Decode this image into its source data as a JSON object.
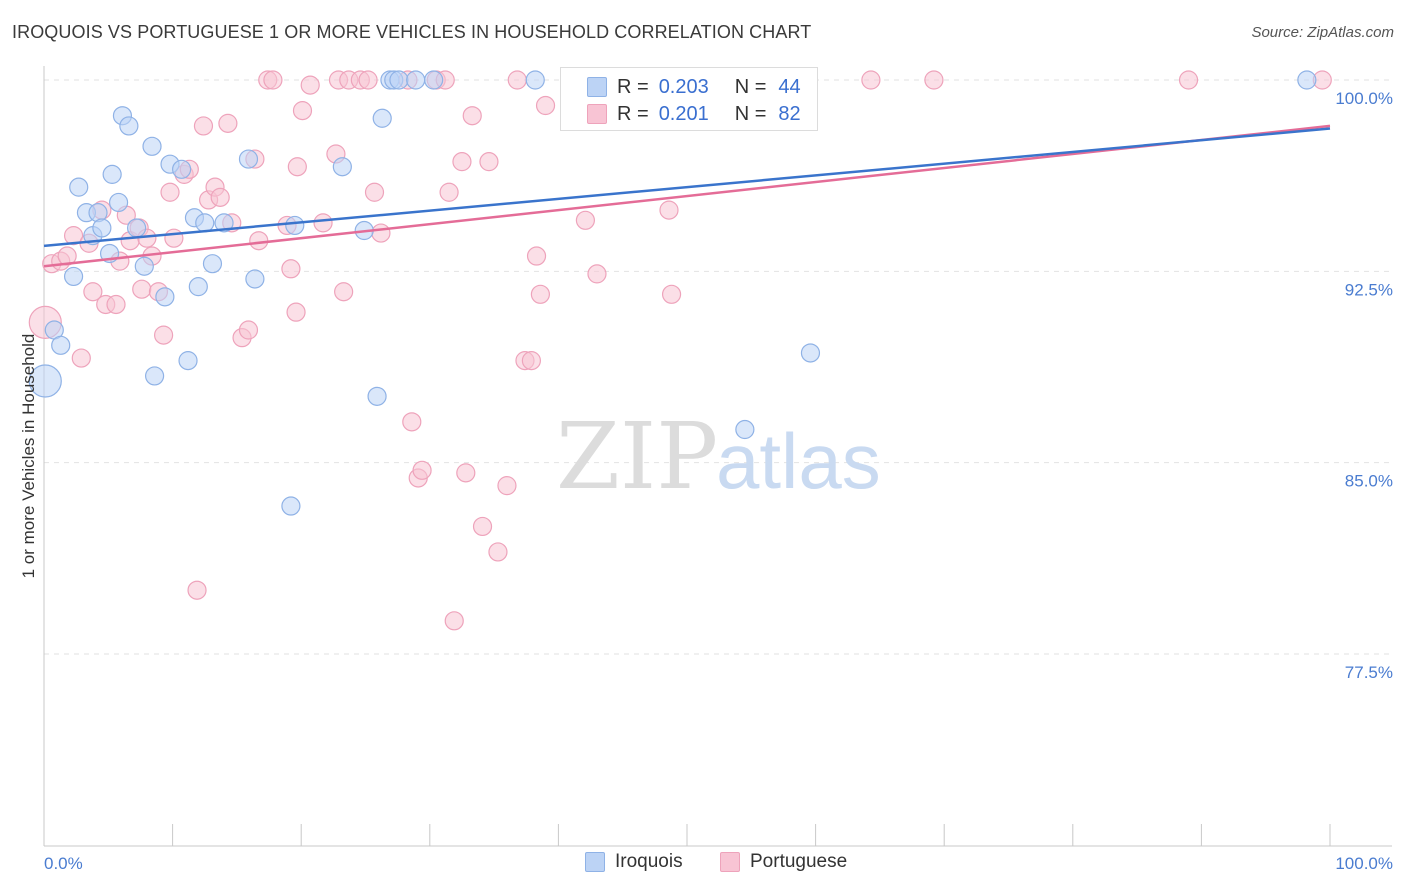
{
  "title": "IROQUOIS VS PORTUGUESE 1 OR MORE VEHICLES IN HOUSEHOLD CORRELATION CHART",
  "source": "Source: ZipAtlas.com",
  "watermark": {
    "zip": "ZIP",
    "atlas": "atlas"
  },
  "legend": {
    "r_label": "R =",
    "n_label": "N =",
    "iroquois": {
      "r": "0.203",
      "n": "44"
    },
    "portuguese": {
      "r": "0.201",
      "n": "82"
    }
  },
  "colors": {
    "iroquois_fill": "#bcd3f5",
    "iroquois_stroke": "#8fb2e6",
    "iroquois_line": "#3a74cc",
    "portuguese_fill": "#f8c4d4",
    "portuguese_stroke": "#eea3bb",
    "portuguese_line": "#e46c97",
    "tick_text": "#4a7cd0"
  },
  "chart_data": {
    "type": "scatter",
    "title": "IROQUOIS VS PORTUGUESE 1 OR MORE VEHICLES IN HOUSEHOLD CORRELATION CHART",
    "xlabel": "",
    "ylabel": "1 or more Vehicles in Household",
    "xlim": [
      0,
      100
    ],
    "ylim": [
      70.3,
      101.2
    ],
    "x_tick_labels": [
      "0.0%",
      "100.0%"
    ],
    "y_ticks": [
      77.5,
      85.0,
      92.5,
      100.0
    ],
    "y_tick_labels": [
      "77.5%",
      "85.0%",
      "92.5%",
      "100.0%"
    ],
    "grid": true,
    "legend_position": "top-center",
    "series": [
      {
        "name": "Iroquois",
        "trend": {
          "x": [
            0,
            100
          ],
          "y": [
            93.5,
            98.1
          ]
        },
        "points": [
          [
            0.1,
            88.2
          ],
          [
            0.8,
            90.2
          ],
          [
            1.3,
            89.6
          ],
          [
            2.3,
            92.3
          ],
          [
            2.7,
            95.8
          ],
          [
            3.3,
            94.8
          ],
          [
            3.8,
            93.9
          ],
          [
            4.2,
            94.8
          ],
          [
            4.5,
            94.2
          ],
          [
            5.1,
            93.2
          ],
          [
            5.3,
            96.3
          ],
          [
            5.8,
            95.2
          ],
          [
            6.1,
            98.6
          ],
          [
            6.6,
            98.2
          ],
          [
            7.2,
            94.2
          ],
          [
            7.8,
            92.7
          ],
          [
            8.4,
            97.4
          ],
          [
            8.6,
            88.4
          ],
          [
            9.4,
            91.5
          ],
          [
            9.8,
            96.7
          ],
          [
            10.7,
            96.5
          ],
          [
            11.2,
            89.0
          ],
          [
            11.7,
            94.6
          ],
          [
            12.0,
            91.9
          ],
          [
            12.5,
            94.4
          ],
          [
            13.1,
            92.8
          ],
          [
            14.0,
            94.4
          ],
          [
            15.9,
            96.9
          ],
          [
            16.4,
            92.2
          ],
          [
            19.2,
            83.3
          ],
          [
            19.5,
            94.3
          ],
          [
            23.2,
            96.6
          ],
          [
            24.9,
            94.1
          ],
          [
            25.9,
            87.6
          ],
          [
            26.3,
            98.5
          ],
          [
            26.9,
            100.0
          ],
          [
            27.2,
            100.0
          ],
          [
            27.6,
            100.0
          ],
          [
            28.9,
            100.0
          ],
          [
            30.3,
            100.0
          ],
          [
            38.2,
            100.0
          ],
          [
            54.5,
            86.3
          ],
          [
            59.6,
            89.3
          ],
          [
            98.2,
            100.0
          ]
        ]
      },
      {
        "name": "Portuguese",
        "trend": {
          "x": [
            0,
            100
          ],
          "y": [
            92.7,
            98.2
          ]
        },
        "points": [
          [
            0.1,
            90.5
          ],
          [
            0.6,
            92.8
          ],
          [
            1.3,
            92.9
          ],
          [
            1.8,
            93.1
          ],
          [
            2.3,
            93.9
          ],
          [
            2.9,
            89.1
          ],
          [
            3.5,
            93.6
          ],
          [
            3.8,
            91.7
          ],
          [
            4.5,
            94.9
          ],
          [
            4.8,
            91.2
          ],
          [
            5.6,
            91.2
          ],
          [
            5.9,
            92.9
          ],
          [
            6.4,
            94.7
          ],
          [
            6.7,
            93.7
          ],
          [
            7.4,
            94.2
          ],
          [
            7.6,
            91.8
          ],
          [
            8.0,
            93.8
          ],
          [
            8.4,
            93.1
          ],
          [
            8.9,
            91.7
          ],
          [
            9.3,
            90.0
          ],
          [
            9.8,
            95.6
          ],
          [
            10.1,
            93.8
          ],
          [
            10.9,
            96.3
          ],
          [
            11.3,
            96.5
          ],
          [
            11.9,
            80.0
          ],
          [
            12.4,
            98.2
          ],
          [
            12.8,
            95.3
          ],
          [
            13.3,
            95.8
          ],
          [
            13.7,
            95.4
          ],
          [
            14.3,
            98.3
          ],
          [
            14.6,
            94.4
          ],
          [
            15.4,
            89.9
          ],
          [
            15.9,
            90.2
          ],
          [
            16.4,
            96.9
          ],
          [
            16.7,
            93.7
          ],
          [
            17.4,
            100.0
          ],
          [
            17.8,
            100.0
          ],
          [
            18.9,
            94.3
          ],
          [
            19.2,
            92.6
          ],
          [
            19.6,
            90.9
          ],
          [
            19.7,
            96.6
          ],
          [
            20.1,
            98.8
          ],
          [
            20.7,
            99.8
          ],
          [
            21.7,
            94.4
          ],
          [
            22.7,
            97.1
          ],
          [
            22.9,
            100.0
          ],
          [
            23.3,
            91.7
          ],
          [
            23.7,
            100.0
          ],
          [
            24.6,
            100.0
          ],
          [
            25.2,
            100.0
          ],
          [
            25.7,
            95.6
          ],
          [
            26.2,
            94.0
          ],
          [
            28.3,
            100.0
          ],
          [
            28.6,
            86.6
          ],
          [
            29.1,
            84.4
          ],
          [
            29.4,
            84.7
          ],
          [
            30.5,
            100.0
          ],
          [
            31.2,
            100.0
          ],
          [
            31.5,
            95.6
          ],
          [
            31.9,
            78.8
          ],
          [
            32.5,
            96.8
          ],
          [
            32.8,
            84.6
          ],
          [
            33.3,
            98.6
          ],
          [
            34.1,
            82.5
          ],
          [
            34.6,
            96.8
          ],
          [
            35.3,
            81.5
          ],
          [
            36.0,
            84.1
          ],
          [
            36.8,
            100.0
          ],
          [
            37.4,
            89.0
          ],
          [
            37.9,
            89.0
          ],
          [
            38.3,
            93.1
          ],
          [
            38.6,
            91.6
          ],
          [
            39.0,
            99.0
          ],
          [
            42.1,
            94.5
          ],
          [
            43.0,
            92.4
          ],
          [
            48.0,
            100.0
          ],
          [
            48.6,
            94.9
          ],
          [
            48.8,
            91.6
          ],
          [
            64.3,
            100.0
          ],
          [
            69.2,
            100.0
          ],
          [
            89.0,
            100.0
          ],
          [
            99.4,
            100.0
          ]
        ]
      }
    ]
  }
}
